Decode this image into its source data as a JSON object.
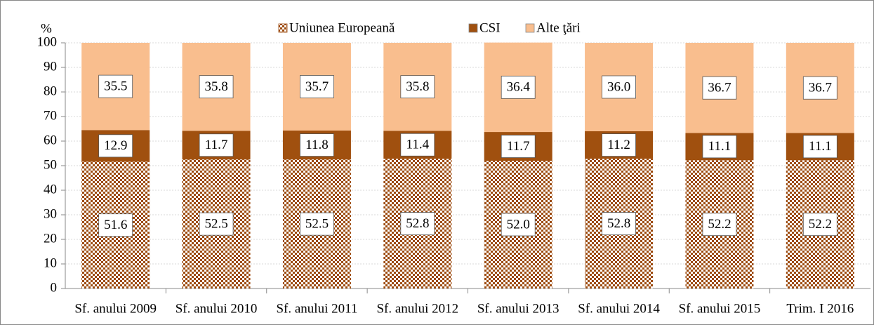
{
  "chart_data": {
    "type": "stacked_bar",
    "y_label": "%",
    "categories": [
      "Sf. anului 2009",
      "Sf. anului 2010",
      "Sf. anului 2011",
      "Sf. anului 2012",
      "Sf. anului 2013",
      "Sf. anului 2014",
      "Sf. anului 2015",
      "Trim. I 2016"
    ],
    "series": [
      {
        "name": "Uniunea Europeană",
        "color": "#9c4a0e",
        "pattern": "checkerboard",
        "values": [
          51.6,
          52.5,
          52.5,
          52.8,
          52.0,
          52.8,
          52.2,
          52.2
        ],
        "value_labels": [
          "51.6",
          "52.5",
          "52.5",
          "52.8",
          "52.0",
          "52.8",
          "52.2",
          "52.2"
        ]
      },
      {
        "name": "CSI",
        "color": "#a0500f",
        "values": [
          12.9,
          11.7,
          11.8,
          11.4,
          11.7,
          11.2,
          11.1,
          11.1
        ],
        "value_labels": [
          "12.9",
          "11.7",
          "11.8",
          "11.4",
          "11.7",
          "11.2",
          "11.1",
          "11.1"
        ]
      },
      {
        "name": "Alte ţări",
        "color": "#f9be8e",
        "values": [
          35.5,
          35.8,
          35.7,
          35.8,
          36.4,
          36.0,
          36.7,
          36.7
        ],
        "value_labels": [
          "35.5",
          "35.8",
          "35.7",
          "35.8",
          "36.4",
          "36.0",
          "36.7",
          "36.7"
        ]
      }
    ],
    "ylim": [
      0,
      100
    ],
    "yticks": [
      0,
      10,
      20,
      30,
      40,
      50,
      60,
      70,
      80,
      90,
      100
    ],
    "grid": true,
    "legend": "top"
  }
}
